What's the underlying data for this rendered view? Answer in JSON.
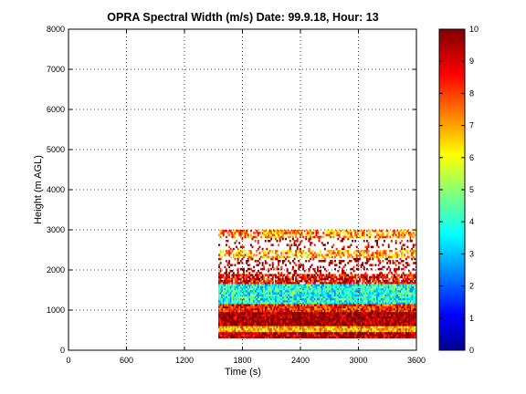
{
  "chart_data": {
    "type": "heatmap",
    "title": "OPRA Spectral Width (m/s)  Date: 99.9.18, Hour: 13",
    "xlabel": "Time (s)",
    "ylabel": "Height (m AGL)",
    "xlim": [
      0,
      3600
    ],
    "ylim": [
      0,
      8000
    ],
    "xticks": [
      "0",
      "600",
      "1200",
      "1800",
      "2400",
      "3000",
      "3600"
    ],
    "yticks": [
      "0",
      "1000",
      "2000",
      "3000",
      "4000",
      "5000",
      "6000",
      "7000",
      "8000"
    ],
    "grid": true,
    "colormap": "jet",
    "clim": [
      0,
      10
    ],
    "colorbar_ticks": [
      "0",
      "1",
      "2",
      "3",
      "4",
      "5",
      "6",
      "7",
      "8",
      "9",
      "10"
    ],
    "data_time_range": [
      1550,
      3600
    ],
    "height_layers": [
      {
        "from": 2800,
        "to": 3000,
        "typical_value": 7.5,
        "coverage": 0.6
      },
      {
        "from": 2500,
        "to": 2800,
        "typical_value": 9.5,
        "coverage": 0.15
      },
      {
        "from": 2300,
        "to": 2500,
        "typical_value": 7.0,
        "coverage": 0.55
      },
      {
        "from": 1900,
        "to": 2300,
        "typical_value": 9.6,
        "coverage": 0.25
      },
      {
        "from": 1650,
        "to": 1900,
        "typical_value": 9.0,
        "coverage": 0.8
      },
      {
        "from": 1150,
        "to": 1650,
        "typical_value": 4.0,
        "coverage": 1.0
      },
      {
        "from": 950,
        "to": 1150,
        "typical_value": 8.5,
        "coverage": 1.0
      },
      {
        "from": 600,
        "to": 950,
        "typical_value": 9.9,
        "coverage": 1.0
      },
      {
        "from": 450,
        "to": 600,
        "typical_value": 7.0,
        "coverage": 1.0
      },
      {
        "from": 300,
        "to": 450,
        "typical_value": 9.6,
        "coverage": 1.0
      }
    ]
  }
}
